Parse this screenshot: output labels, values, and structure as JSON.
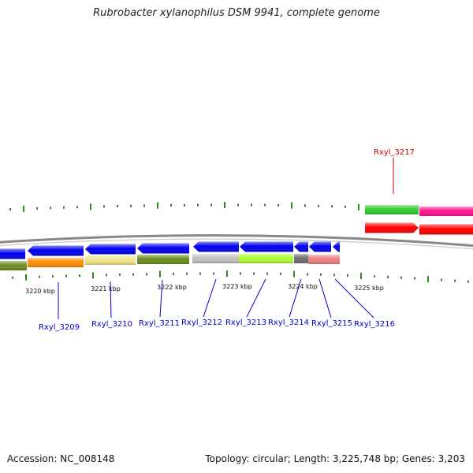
{
  "title": "Rubrobacter xylanophilus DSM 9941, complete genome",
  "footer": {
    "accession": "Accession: NC_008148",
    "topology": "Topology: circular; Length: 3,225,748 bp; Genes: 3,203"
  },
  "colors": {
    "backbone": "#888888",
    "tick": "#2e8b20",
    "forward_label": "#cc0000",
    "reverse_label": "#0000cc",
    "reverse_gene": "#0000ee"
  },
  "kbp_ticks": [
    "3220 kbp",
    "3221 kbp",
    "3222 kbp",
    "3223 kbp",
    "3224 kbp",
    "3225 kbp"
  ],
  "genes_forward": [
    {
      "name": "Rxyl_3217",
      "color": "#ff0000"
    }
  ],
  "genes_reverse": [
    {
      "name": "Rxyl_3209"
    },
    {
      "name": "Rxyl_3210"
    },
    {
      "name": "Rxyl_3211"
    },
    {
      "name": "Rxyl_3212"
    },
    {
      "name": "Rxyl_3213"
    },
    {
      "name": "Rxyl_3214"
    },
    {
      "name": "Rxyl_3215"
    },
    {
      "name": "Rxyl_3216"
    }
  ],
  "cog_bars": [
    {
      "color": "#6b8e23"
    },
    {
      "color": "#ff8c00"
    },
    {
      "color": "#f0e68c"
    },
    {
      "color": "#6b8e23"
    },
    {
      "color": "#c0c0c0"
    },
    {
      "color": "#adff2f"
    },
    {
      "color": "#707070"
    },
    {
      "color": "#f08080"
    },
    {
      "color": "#32cd32"
    },
    {
      "color": "#ff1493"
    }
  ]
}
